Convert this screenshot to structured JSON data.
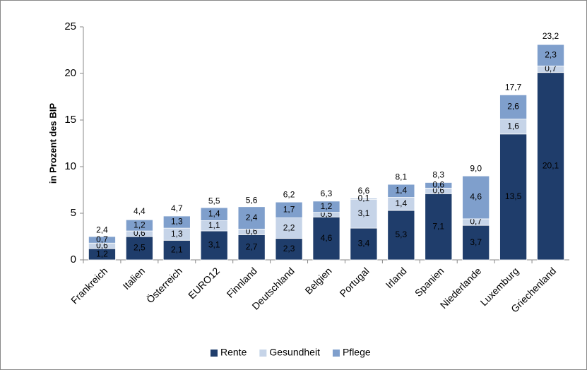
{
  "chart_data": {
    "type": "stacked_bar",
    "y_label": "in Prozent des BIP",
    "categories": [
      "Frankreich",
      "Italien",
      "Österreich",
      "EURO12",
      "Finnland",
      "Deutschland",
      "Belgien",
      "Portugal",
      "Irland",
      "Spanien",
      "Niederlande",
      "Luxemburg",
      "Griechenland"
    ],
    "series": [
      {
        "name": "Rente",
        "color": "#1f3d6b",
        "label_color": "#ffffff",
        "values": [
          1.2,
          2.5,
          2.1,
          3.1,
          2.7,
          2.3,
          4.6,
          3.4,
          5.3,
          7.1,
          3.7,
          13.5,
          20.1
        ],
        "value_labels": [
          "1,2",
          "2,5",
          "2,1",
          "3,1",
          "2,7",
          "2,3",
          "4,6",
          "3,4",
          "5,3",
          "7,1",
          "3,7",
          "13,5",
          "20,1"
        ]
      },
      {
        "name": "Gesundheit",
        "color": "#c6d4e8",
        "label_color": "#000000",
        "values": [
          0.6,
          0.6,
          1.3,
          1.1,
          0.6,
          2.2,
          0.5,
          3.1,
          1.4,
          0.6,
          0.7,
          1.6,
          0.7
        ],
        "value_labels": [
          "0,6",
          "0,6",
          "1,3",
          "1,1",
          "0,6",
          "2,2",
          "0,5",
          "3,1",
          "1,4",
          "0,6",
          "0,7",
          "1,6",
          "0,7"
        ]
      },
      {
        "name": "Pflege",
        "color": "#7f9fcc",
        "label_color": "#000000",
        "values": [
          0.7,
          1.2,
          1.3,
          1.4,
          2.4,
          1.7,
          1.2,
          0.1,
          1.4,
          0.6,
          4.6,
          2.6,
          2.3
        ],
        "value_labels": [
          "0,7",
          "1,2",
          "1,3",
          "1,4",
          "2,4",
          "1,7",
          "1,2",
          "0,1",
          "1,4",
          "0,6",
          "4,6",
          "2,6",
          "2,3"
        ]
      }
    ],
    "totals": [
      2.4,
      4.4,
      4.7,
      5.5,
      5.6,
      6.2,
      6.3,
      6.6,
      8.1,
      8.3,
      9.0,
      17.7,
      23.2
    ],
    "total_labels": [
      "2,4",
      "4,4",
      "4,7",
      "5,5",
      "5,6",
      "6,2",
      "6,3",
      "6,6",
      "8,1",
      "8,3",
      "9,0",
      "17,7",
      "23,2"
    ],
    "ylim": [
      0,
      25
    ],
    "yticks": [
      0,
      5,
      10,
      15,
      20,
      25
    ],
    "grid": false,
    "legend": "bottom"
  }
}
